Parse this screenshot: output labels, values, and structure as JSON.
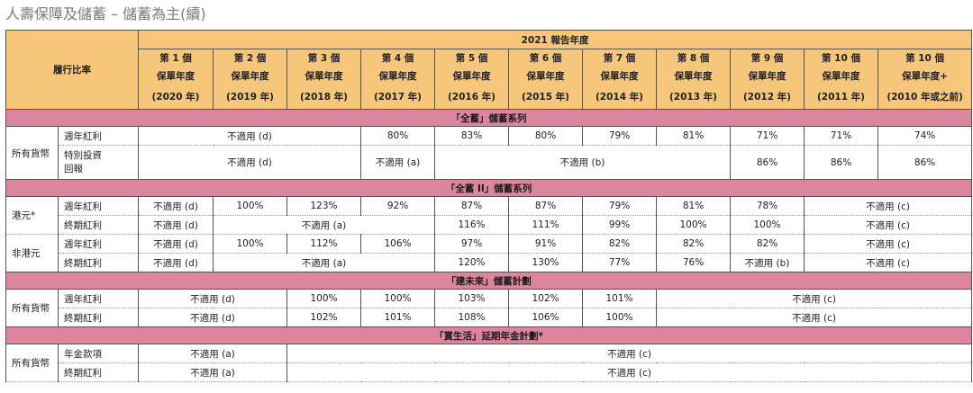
{
  "page_title": "人壽保障及儲蓄 – 儲蓄為主(續)",
  "header": {
    "report_year_label": "2021 報告年度",
    "ratio_label": "履行比率",
    "columns": [
      {
        "policy_year": "第 1 個",
        "label": "保單年度",
        "year": "(2020 年)"
      },
      {
        "policy_year": "第 2 個",
        "label": "保單年度",
        "year": "(2019 年)"
      },
      {
        "policy_year": "第 3 個",
        "label": "保單年度",
        "year": "(2018 年)"
      },
      {
        "policy_year": "第 4 個",
        "label": "保單年度",
        "year": "(2017 年)"
      },
      {
        "policy_year": "第 5 個",
        "label": "保單年度",
        "year": "(2016 年)"
      },
      {
        "policy_year": "第 6 個",
        "label": "保單年度",
        "year": "(2015 年)"
      },
      {
        "policy_year": "第 7 個",
        "label": "保單年度",
        "year": "(2014 年)"
      },
      {
        "policy_year": "第 8 個",
        "label": "保單年度",
        "year": "(2013 年)"
      },
      {
        "policy_year": "第 9 個",
        "label": "保單年度",
        "year": "(2012 年)"
      },
      {
        "policy_year": "第 10 個",
        "label": "保單年度",
        "year": "(2011 年)"
      },
      {
        "policy_year": "第 10 個",
        "label": "保單年度+",
        "year": "(2010 年或之前)"
      }
    ]
  },
  "sections": [
    {
      "title": "「全蓄」儲蓄系列",
      "groups": [
        {
          "currency": "所有貨幣",
          "rows": [
            {
              "metric": "週年紅利",
              "cells": [
                {
                  "v": "不適用 (d)",
                  "span": 3
                },
                {
                  "v": "80%",
                  "span": 1
                },
                {
                  "v": "83%",
                  "span": 1
                },
                {
                  "v": "80%",
                  "span": 1
                },
                {
                  "v": "79%",
                  "span": 1
                },
                {
                  "v": "81%",
                  "span": 1
                },
                {
                  "v": "71%",
                  "span": 1
                },
                {
                  "v": "71%",
                  "span": 1
                },
                {
                  "v": "74%",
                  "span": 1
                }
              ]
            },
            {
              "metric": "特別投資\n回報",
              "tall": true,
              "cells": [
                {
                  "v": "不適用 (d)",
                  "span": 3
                },
                {
                  "v": "不適用 (a)",
                  "span": 1
                },
                {
                  "v": "不適用 (b)",
                  "span": 4
                },
                {
                  "v": "86%",
                  "span": 1
                },
                {
                  "v": "86%",
                  "span": 1
                },
                {
                  "v": "86%",
                  "span": 1
                }
              ]
            }
          ]
        }
      ]
    },
    {
      "title": "「全蓄 II」儲蓄系列",
      "groups": [
        {
          "currency": "港元*",
          "rows": [
            {
              "metric": "週年紅利",
              "cells": [
                {
                  "v": "不適用 (d)",
                  "span": 1
                },
                {
                  "v": "100%",
                  "span": 1
                },
                {
                  "v": "123%",
                  "span": 1
                },
                {
                  "v": "92%",
                  "span": 1
                },
                {
                  "v": "87%",
                  "span": 1
                },
                {
                  "v": "87%",
                  "span": 1
                },
                {
                  "v": "79%",
                  "span": 1
                },
                {
                  "v": "81%",
                  "span": 1
                },
                {
                  "v": "78%",
                  "span": 1
                },
                {
                  "v": "不適用 (c)",
                  "span": 2
                }
              ]
            },
            {
              "metric": "終期紅利",
              "cells": [
                {
                  "v": "不適用 (d)",
                  "span": 1
                },
                {
                  "v": "不適用 (a)",
                  "span": 3
                },
                {
                  "v": "116%",
                  "span": 1
                },
                {
                  "v": "111%",
                  "span": 1
                },
                {
                  "v": "99%",
                  "span": 1
                },
                {
                  "v": "100%",
                  "span": 1
                },
                {
                  "v": "100%",
                  "span": 1
                },
                {
                  "v": "不適用 (c)",
                  "span": 2
                }
              ]
            }
          ]
        },
        {
          "currency": "非港元",
          "rows": [
            {
              "metric": "週年紅利",
              "cells": [
                {
                  "v": "不適用 (d)",
                  "span": 1
                },
                {
                  "v": "100%",
                  "span": 1
                },
                {
                  "v": "112%",
                  "span": 1
                },
                {
                  "v": "106%",
                  "span": 1
                },
                {
                  "v": "97%",
                  "span": 1
                },
                {
                  "v": "91%",
                  "span": 1
                },
                {
                  "v": "82%",
                  "span": 1
                },
                {
                  "v": "82%",
                  "span": 1
                },
                {
                  "v": "82%",
                  "span": 1
                },
                {
                  "v": "不適用 (c)",
                  "span": 2
                }
              ]
            },
            {
              "metric": "終期紅利",
              "cells": [
                {
                  "v": "不適用 (d)",
                  "span": 1
                },
                {
                  "v": "不適用 (a)",
                  "span": 3
                },
                {
                  "v": "120%",
                  "span": 1
                },
                {
                  "v": "130%",
                  "span": 1
                },
                {
                  "v": "77%",
                  "span": 1
                },
                {
                  "v": "76%",
                  "span": 1
                },
                {
                  "v": "不適用 (b)",
                  "span": 1
                },
                {
                  "v": "不適用 (c)",
                  "span": 2
                }
              ]
            }
          ]
        }
      ]
    },
    {
      "title": "「建未來」儲蓄計劃",
      "groups": [
        {
          "currency": "所有貨幣",
          "rows": [
            {
              "metric": "週年紅利",
              "cells": [
                {
                  "v": "不適用 (d)",
                  "span": 2
                },
                {
                  "v": "100%",
                  "span": 1
                },
                {
                  "v": "100%",
                  "span": 1
                },
                {
                  "v": "103%",
                  "span": 1
                },
                {
                  "v": "102%",
                  "span": 1
                },
                {
                  "v": "101%",
                  "span": 1
                },
                {
                  "v": "不適用 (c)",
                  "span": 4
                }
              ]
            },
            {
              "metric": "終期紅利",
              "cells": [
                {
                  "v": "不適用 (d)",
                  "span": 2
                },
                {
                  "v": "102%",
                  "span": 1
                },
                {
                  "v": "101%",
                  "span": 1
                },
                {
                  "v": "108%",
                  "span": 1
                },
                {
                  "v": "106%",
                  "span": 1
                },
                {
                  "v": "100%",
                  "span": 1
                },
                {
                  "v": "不適用 (c)",
                  "span": 4
                }
              ]
            }
          ]
        }
      ]
    },
    {
      "title": "「賞生活」延期年金計劃*",
      "groups": [
        {
          "currency": "所有貨幣",
          "rows": [
            {
              "metric": "年金款項",
              "cells": [
                {
                  "v": "不適用 (a)",
                  "span": 2
                },
                {
                  "v": "不適用 (c)",
                  "span": 9
                }
              ]
            },
            {
              "metric": "終期紅利",
              "cells": [
                {
                  "v": "不適用 (a)",
                  "span": 2
                },
                {
                  "v": "不適用 (c)",
                  "span": 9
                }
              ]
            }
          ]
        }
      ]
    }
  ]
}
